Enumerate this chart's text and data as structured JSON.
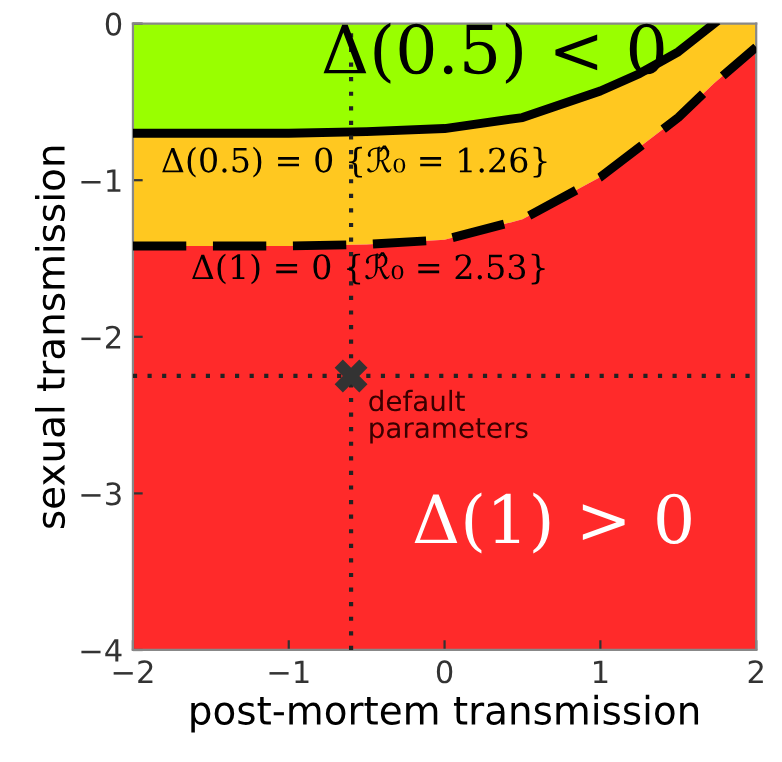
{
  "chart_data": {
    "type": "area",
    "xlabel": "post-mortem transmission",
    "ylabel": "sexual transmission",
    "x": [
      -2,
      -1,
      -0.5,
      0,
      0.5,
      1,
      1.25,
      1.5,
      1.73,
      2
    ],
    "series": [
      {
        "color": "#99ff00",
        "line_style": "solid",
        "values": [
          -0.7,
          -0.7,
          -0.69,
          -0.67,
          -0.6,
          -0.43,
          -0.32,
          -0.18,
          0,
          0
        ]
      },
      {
        "color": "#ffc820",
        "line_style": "dashed",
        "values": [
          -0.72,
          -0.72,
          -0.72,
          -0.71,
          -0.65,
          -0.55,
          -0.47,
          -0.42,
          -0.38,
          -0.15
        ]
      },
      {
        "color": "#ff2a2a",
        "values": [
          -2.58,
          -2.58,
          -2.59,
          -2.62,
          -2.75,
          -3.02,
          -3.21,
          -3.4,
          -3.62,
          -3.85
        ]
      },
      {
        "type": "scatter",
        "color": "#333333",
        "marker": "cross",
        "x": [
          -0.6
        ],
        "values": [
          -2.25
        ]
      }
    ],
    "ref_lines": [
      {
        "axis": "x",
        "value": -0.6,
        "label": null,
        "color": "#222222",
        "line_style": "dotted"
      },
      {
        "axis": "y",
        "value": -2.25,
        "label": null,
        "color": "#222222",
        "line_style": "dotted"
      }
    ],
    "annotations": [
      "Δ(0.5) < 0",
      {
        "text": "Δ(0.5) = 0 {ℛ̂₀ = 1.26}",
        "x": -0.57,
        "y": -0.89
      },
      "Δ(1) = 0 {ℛ̂₀ = 2.53}",
      {
        "text": "default parameters",
        "x": -0.6,
        "y": -2.25
      },
      "Δ(1) > 0"
    ],
    "xlim": [
      -2,
      2
    ],
    "ylim": [
      -4,
      0
    ],
    "xticks": [
      -2,
      -1,
      0,
      1,
      2
    ],
    "yticks": [
      -4,
      -3,
      -2,
      -1,
      0
    ],
    "stacked": true,
    "grid": false,
    "legend": false
  }
}
